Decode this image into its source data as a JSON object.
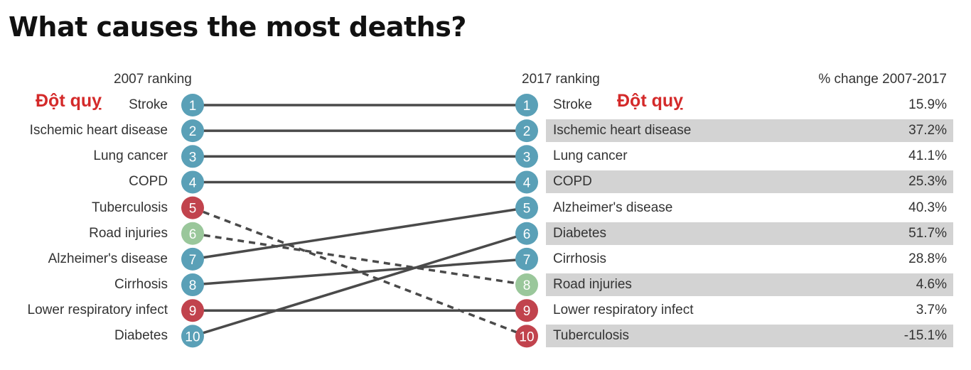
{
  "title": "What causes the most deaths?",
  "headers": {
    "left": "2007 ranking",
    "middle": "2017 ranking",
    "right": "% change 2007-2017"
  },
  "annotations": {
    "left": "Đột quỵ",
    "right": "Đột quỵ"
  },
  "colors": {
    "blue": "#5aa0b7",
    "red": "#c1434d",
    "green": "#9ac79b",
    "line": "#4a4a4a",
    "stripe": "#d3d3d3"
  },
  "chart_data": {
    "type": "slope",
    "title": "What causes the most deaths?",
    "left_axis": "2007 ranking",
    "right_axis": "2017 ranking",
    "ranks_2007": [
      {
        "rank": 1,
        "cause": "Stroke",
        "color": "blue"
      },
      {
        "rank": 2,
        "cause": "Ischemic heart disease",
        "color": "blue"
      },
      {
        "rank": 3,
        "cause": "Lung cancer",
        "color": "blue"
      },
      {
        "rank": 4,
        "cause": "COPD",
        "color": "blue"
      },
      {
        "rank": 5,
        "cause": "Tuberculosis",
        "color": "red"
      },
      {
        "rank": 6,
        "cause": "Road injuries",
        "color": "green"
      },
      {
        "rank": 7,
        "cause": "Alzheimer's disease",
        "color": "blue"
      },
      {
        "rank": 8,
        "cause": "Cirrhosis",
        "color": "blue"
      },
      {
        "rank": 9,
        "cause": "Lower respiratory infect",
        "color": "red"
      },
      {
        "rank": 10,
        "cause": "Diabetes",
        "color": "blue"
      }
    ],
    "ranks_2017": [
      {
        "rank": 1,
        "cause": "Stroke",
        "pct_change": "15.9%",
        "color": "blue"
      },
      {
        "rank": 2,
        "cause": "Ischemic heart disease",
        "pct_change": "37.2%",
        "color": "blue"
      },
      {
        "rank": 3,
        "cause": "Lung cancer",
        "pct_change": "41.1%",
        "color": "blue"
      },
      {
        "rank": 4,
        "cause": "COPD",
        "pct_change": "25.3%",
        "color": "blue"
      },
      {
        "rank": 5,
        "cause": "Alzheimer's disease",
        "pct_change": "40.3%",
        "color": "blue"
      },
      {
        "rank": 6,
        "cause": "Diabetes",
        "pct_change": "51.7%",
        "color": "blue"
      },
      {
        "rank": 7,
        "cause": "Cirrhosis",
        "pct_change": "28.8%",
        "color": "blue"
      },
      {
        "rank": 8,
        "cause": "Road injuries",
        "pct_change": "4.6%",
        "color": "green"
      },
      {
        "rank": 9,
        "cause": "Lower respiratory infect",
        "pct_change": "3.7%",
        "color": "red"
      },
      {
        "rank": 10,
        "cause": "Tuberculosis",
        "pct_change": "-15.1%",
        "color": "red"
      }
    ],
    "links": [
      {
        "from": 1,
        "to": 1,
        "style": "solid"
      },
      {
        "from": 2,
        "to": 2,
        "style": "solid"
      },
      {
        "from": 3,
        "to": 3,
        "style": "solid"
      },
      {
        "from": 4,
        "to": 4,
        "style": "solid"
      },
      {
        "from": 5,
        "to": 10,
        "style": "dashed"
      },
      {
        "from": 6,
        "to": 8,
        "style": "dashed"
      },
      {
        "from": 7,
        "to": 5,
        "style": "solid"
      },
      {
        "from": 8,
        "to": 7,
        "style": "solid"
      },
      {
        "from": 9,
        "to": 9,
        "style": "solid"
      },
      {
        "from": 10,
        "to": 6,
        "style": "solid"
      }
    ]
  }
}
